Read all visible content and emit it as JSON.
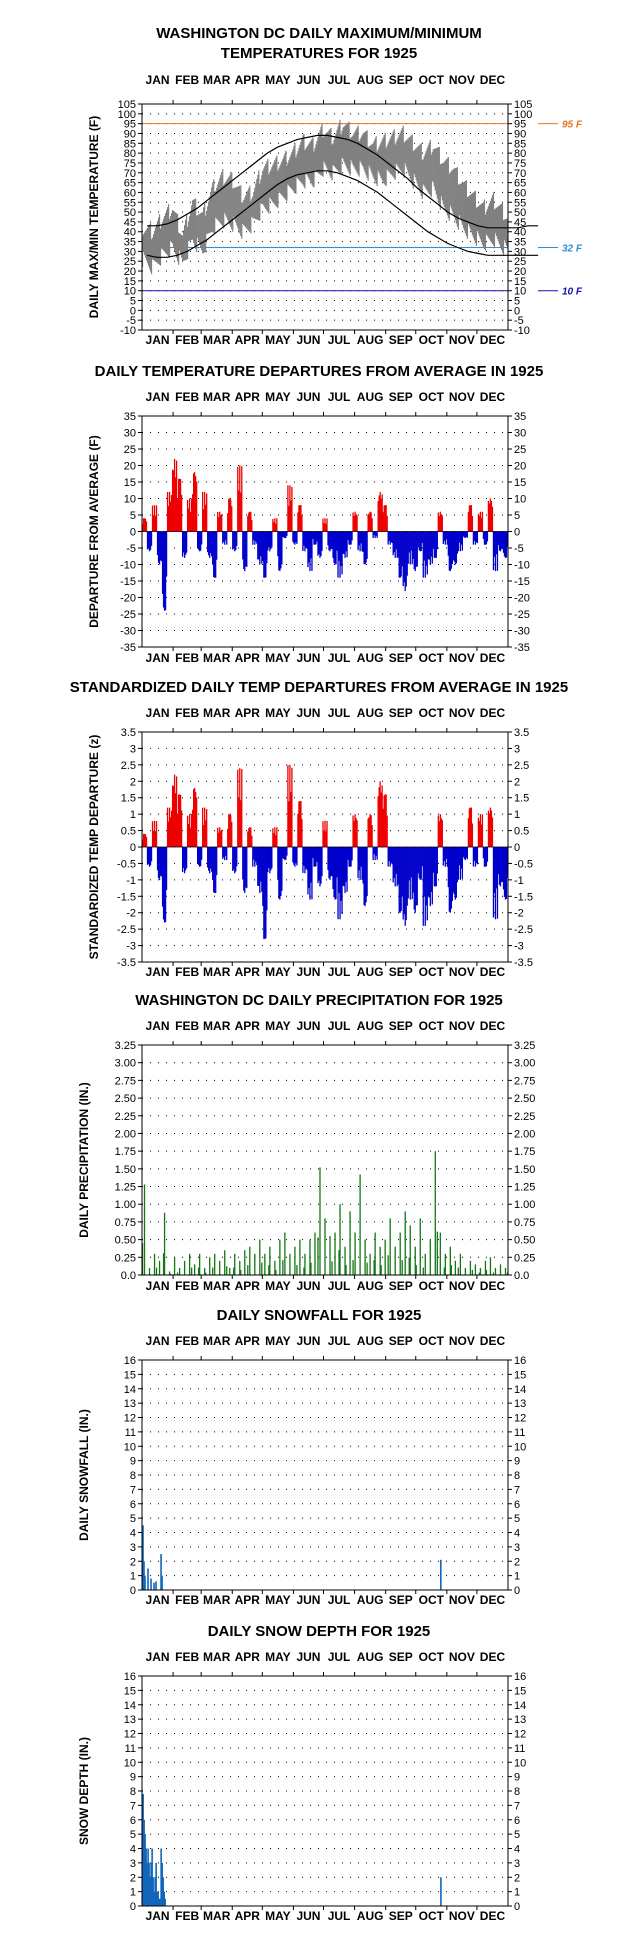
{
  "chart_data": [
    {
      "type": "line",
      "title": "WASHINGTON DC DAILY MAXIMUM/MINIMUM",
      "subtitle": "TEMPERATURES FOR 1925",
      "ylabel": "DAILY MAX/MIN TEMPERATURE (F)",
      "x_month_labels": [
        "JAN",
        "FEB",
        "MAR",
        "APR",
        "MAY",
        "JUN",
        "JUL",
        "AUG",
        "SEP",
        "OCT",
        "NOV",
        "DEC"
      ],
      "ylim": [
        -10,
        105
      ],
      "yticks": [
        -10,
        -5,
        0,
        5,
        10,
        15,
        20,
        25,
        30,
        35,
        40,
        45,
        50,
        55,
        60,
        65,
        70,
        75,
        80,
        85,
        90,
        95,
        100,
        105
      ],
      "reference_lines": [
        {
          "label": "95 F",
          "value": 95,
          "color": "#e8731f"
        },
        {
          "label": "32 F",
          "value": 32,
          "color": "#2a8fd6"
        },
        {
          "label": "10 F",
          "value": 10,
          "color": "#1010b0"
        }
      ],
      "series": [],
      "x_days_per_point": 10,
      "observed_max_by_10day": [
        42,
        40,
        47,
        52,
        38,
        55,
        48,
        62,
        68,
        66,
        58,
        60,
        72,
        74,
        76,
        80,
        86,
        84,
        92,
        88,
        95,
        90,
        90,
        84,
        86,
        88,
        90,
        85,
        80,
        84,
        76,
        72,
        64,
        58,
        52,
        56,
        50,
        42,
        44,
        40
      ],
      "observed_min_by_10day": [
        26,
        22,
        28,
        32,
        24,
        36,
        30,
        42,
        46,
        44,
        40,
        44,
        52,
        54,
        58,
        62,
        66,
        66,
        72,
        70,
        74,
        72,
        72,
        68,
        66,
        70,
        72,
        66,
        60,
        62,
        52,
        48,
        42,
        38,
        34,
        36,
        32,
        28,
        28,
        26
      ],
      "normal_max_by_10day": [
        43,
        43,
        44,
        46,
        49,
        52,
        56,
        60,
        64,
        68,
        72,
        76,
        80,
        83,
        85,
        87,
        88,
        89,
        89,
        88,
        87,
        85,
        82,
        79,
        75,
        71,
        67,
        62,
        58,
        54,
        50,
        47,
        45,
        43,
        42,
        42,
        42,
        42,
        43,
        43
      ],
      "normal_min_by_10day": [
        28,
        27,
        27,
        28,
        30,
        33,
        36,
        40,
        44,
        48,
        52,
        56,
        60,
        64,
        67,
        69,
        70,
        71,
        71,
        70,
        68,
        66,
        63,
        60,
        56,
        52,
        48,
        44,
        40,
        37,
        34,
        32,
        30,
        29,
        28,
        28,
        28,
        28,
        28,
        28
      ],
      "colors": {
        "observed": "#808080",
        "normal": "#000000"
      }
    },
    {
      "type": "bar",
      "title": "DAILY TEMPERATURE DEPARTURES FROM AVERAGE IN 1925",
      "ylabel": "DEPARTURE FROM AVERAGE (F)",
      "x_month_labels": [
        "JAN",
        "FEB",
        "MAR",
        "APR",
        "MAY",
        "JUN",
        "JUL",
        "AUG",
        "SEP",
        "OCT",
        "NOV",
        "DEC"
      ],
      "ylim": [
        -35,
        35
      ],
      "yticks": [
        -35,
        -30,
        -25,
        -20,
        -15,
        -10,
        -5,
        0,
        5,
        10,
        15,
        20,
        25,
        30,
        35
      ],
      "x_days_per_point": 5,
      "values": [
        4,
        -6,
        8,
        -10,
        -24,
        12,
        22,
        16,
        -8,
        10,
        18,
        -6,
        12,
        -8,
        -14,
        6,
        -4,
        10,
        -6,
        20,
        -12,
        6,
        -4,
        -10,
        -14,
        -6,
        4,
        -12,
        -2,
        14,
        -4,
        8,
        -6,
        -12,
        -4,
        -8,
        4,
        -6,
        -10,
        -14,
        -8,
        -4,
        6,
        -6,
        -10,
        6,
        -2,
        12,
        8,
        -4,
        -8,
        -14,
        -18,
        -10,
        -12,
        -6,
        -14,
        -10,
        -8,
        6,
        -4,
        -12,
        -10,
        -6,
        -2,
        8,
        -4,
        6,
        -4,
        10,
        -12,
        -6,
        -8
      ],
      "colors": {
        "positive": "#ee0000",
        "negative": "#0000cc"
      }
    },
    {
      "type": "bar",
      "title": "STANDARDIZED DAILY TEMP DEPARTURES FROM AVERAGE IN 1925",
      "ylabel": "STANDARDIZED TEMP DEPARTURE (z)",
      "x_month_labels": [
        "JAN",
        "FEB",
        "MAR",
        "APR",
        "MAY",
        "JUN",
        "JUL",
        "AUG",
        "SEP",
        "OCT",
        "NOV",
        "DEC"
      ],
      "ylim": [
        -3.5,
        3.5
      ],
      "yticks": [
        -3.5,
        -3.0,
        -2.5,
        -2.0,
        -1.5,
        -1.0,
        -0.5,
        0.0,
        0.5,
        1.0,
        1.5,
        2.0,
        2.5,
        3.0,
        3.5
      ],
      "x_days_per_point": 5,
      "values": [
        0.4,
        -0.6,
        0.8,
        -1.0,
        -2.3,
        1.2,
        2.2,
        1.6,
        -0.8,
        1.0,
        1.8,
        -0.6,
        1.2,
        -0.8,
        -1.4,
        0.6,
        -0.4,
        1.0,
        -0.8,
        2.4,
        -1.4,
        0.6,
        -0.6,
        -1.4,
        -2.8,
        -0.8,
        0.6,
        -1.6,
        -0.4,
        2.5,
        -0.6,
        1.4,
        -0.8,
        -1.6,
        -0.6,
        -1.2,
        0.8,
        -1.0,
        -1.6,
        -2.2,
        -1.4,
        -0.6,
        1.0,
        -1.0,
        -1.8,
        1.0,
        -0.4,
        2.0,
        1.6,
        -0.6,
        -1.2,
        -2.0,
        -2.4,
        -1.6,
        -2.0,
        -1.0,
        -2.4,
        -1.8,
        -1.2,
        1.0,
        -0.6,
        -2.0,
        -1.6,
        -1.0,
        -0.4,
        1.2,
        -0.6,
        1.0,
        -0.6,
        1.2,
        -2.2,
        -1.2,
        -1.6
      ],
      "colors": {
        "positive": "#ee0000",
        "negative": "#0000cc"
      }
    },
    {
      "type": "bar",
      "title": "WASHINGTON DC DAILY PRECIPITATION FOR 1925",
      "ylabel": "DAILY PRECIPITATION (IN.)",
      "x_month_labels": [
        "JAN",
        "FEB",
        "MAR",
        "APR",
        "MAY",
        "JUN",
        "JUL",
        "AUG",
        "SEP",
        "OCT",
        "NOV",
        "DEC"
      ],
      "ylim": [
        0,
        3.25
      ],
      "yticks": [
        "0.0",
        "0.25",
        "0.50",
        "0.75",
        "1.00",
        "1.25",
        "1.50",
        "1.75",
        "2.00",
        "2.25",
        "2.50",
        "2.75",
        "3.00",
        "3.25"
      ],
      "x_days_per_point": 5,
      "values": [
        1.28,
        0.1,
        0.3,
        0.2,
        0.88,
        0.05,
        0.25,
        0.1,
        0.2,
        0.3,
        0.15,
        0.3,
        0.1,
        0.25,
        0.3,
        0.2,
        0.35,
        0.1,
        0.3,
        0.2,
        0.35,
        0.4,
        0.3,
        0.5,
        0.3,
        0.4,
        0.2,
        0.5,
        0.6,
        0.3,
        0.4,
        0.5,
        0.3,
        0.5,
        0.6,
        1.52,
        0.8,
        0.55,
        0.6,
        1.0,
        0.4,
        0.9,
        0.6,
        1.42,
        0.5,
        0.3,
        0.6,
        0.4,
        0.5,
        0.8,
        0.4,
        0.6,
        0.9,
        0.7,
        0.4,
        0.8,
        0.3,
        0.5,
        1.75,
        0.6,
        0.3,
        0.4,
        0.2,
        0.3,
        0.1,
        0.2,
        0.15,
        0.1,
        0.2,
        0.25,
        0.1,
        0.15,
        0.1
      ],
      "colors": {
        "bars": "#117711"
      }
    },
    {
      "type": "bar",
      "title": "DAILY SNOWFALL FOR 1925",
      "ylabel": "DAILY SNOWFALL (IN.)",
      "x_month_labels": [
        "JAN",
        "FEB",
        "MAR",
        "APR",
        "MAY",
        "JUN",
        "JUL",
        "AUG",
        "SEP",
        "OCT",
        "NOV",
        "DEC"
      ],
      "ylim": [
        0,
        16
      ],
      "yticks": [
        0,
        1,
        2,
        3,
        4,
        5,
        6,
        7,
        8,
        9,
        10,
        11,
        12,
        13,
        14,
        15,
        16
      ],
      "points": [
        [
          1,
          4.5
        ],
        [
          2,
          2.0
        ],
        [
          3,
          1.0
        ],
        [
          6,
          1.5
        ],
        [
          9,
          0.8
        ],
        [
          12,
          0.5
        ],
        [
          14,
          0.6
        ],
        [
          19,
          2.5
        ],
        [
          20,
          1.0
        ],
        [
          298,
          2.1
        ]
      ],
      "colors": {
        "bars": "#1166bb"
      }
    },
    {
      "type": "area",
      "title": "DAILY SNOW DEPTH FOR 1925",
      "ylabel": "SNOW DEPTH (IN.)",
      "x_month_labels": [
        "JAN",
        "FEB",
        "MAR",
        "APR",
        "MAY",
        "JUN",
        "JUL",
        "AUG",
        "SEP",
        "OCT",
        "NOV",
        "DEC"
      ],
      "ylim": [
        0,
        16
      ],
      "yticks": [
        0,
        1,
        2,
        3,
        4,
        5,
        6,
        7,
        8,
        9,
        10,
        11,
        12,
        13,
        14,
        15,
        16
      ],
      "points": [
        [
          1,
          7.8
        ],
        [
          2,
          6.0
        ],
        [
          3,
          5.0
        ],
        [
          4,
          4.0
        ],
        [
          5,
          3.0
        ],
        [
          6,
          4.0
        ],
        [
          7,
          3.0
        ],
        [
          8,
          2.0
        ],
        [
          9,
          3.0
        ],
        [
          10,
          4.0
        ],
        [
          11,
          2.0
        ],
        [
          12,
          1.0
        ],
        [
          13,
          2.0
        ],
        [
          14,
          3.0
        ],
        [
          15,
          1.0
        ],
        [
          16,
          1.0
        ],
        [
          17,
          0.5
        ],
        [
          18,
          0.5
        ],
        [
          19,
          4.0
        ],
        [
          20,
          3.0
        ],
        [
          21,
          2.0
        ],
        [
          22,
          1.0
        ],
        [
          23,
          0.5
        ],
        [
          298,
          2.0
        ]
      ],
      "colors": {
        "bars": "#1166bb"
      }
    }
  ]
}
